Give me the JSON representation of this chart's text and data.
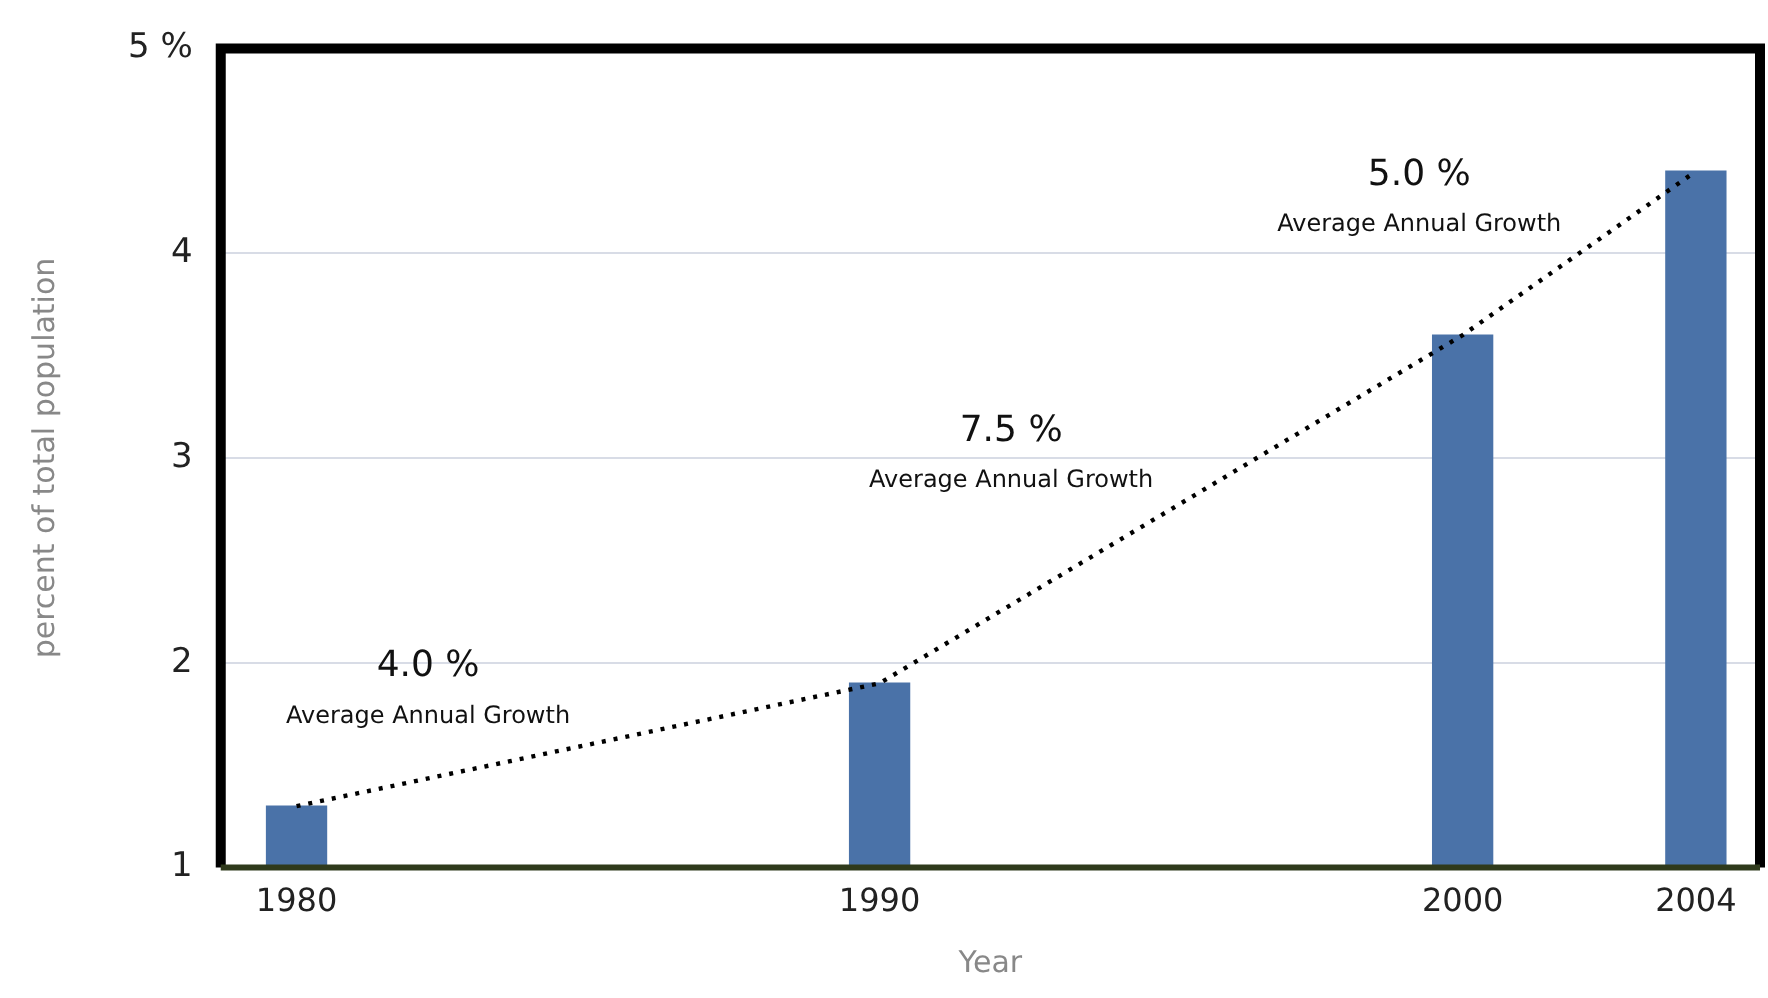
{
  "chart_data": {
    "type": "bar",
    "xlabel": "Year",
    "ylabel": "percent of total population",
    "x": [
      1980,
      1990,
      2000,
      2004
    ],
    "series": [
      {
        "color": "#4a72a8",
        "values": [
          1.3,
          1.9,
          3.6,
          4.4
        ]
      },
      {
        "type": "line",
        "color": "#000000",
        "values": [
          1.3,
          1.9,
          3.6,
          4.4
        ]
      }
    ],
    "xlim": [
      1978.7,
      2005.1
    ],
    "xticks": [
      1980,
      1990,
      2000,
      2004
    ],
    "ylim": [
      1,
      5
    ],
    "yticks": [
      1,
      2,
      3,
      4,
      {
        "value": 5,
        "label": "5 %"
      }
    ],
    "grid": "y",
    "legend": false,
    "line_style": "dotted",
    "marker": "none",
    "annotations": [
      "4.0 %",
      "Average Annual Growth",
      "7.5 %",
      "Average Annual Growth",
      "5.0 %",
      "Average Annual Growth"
    ]
  }
}
